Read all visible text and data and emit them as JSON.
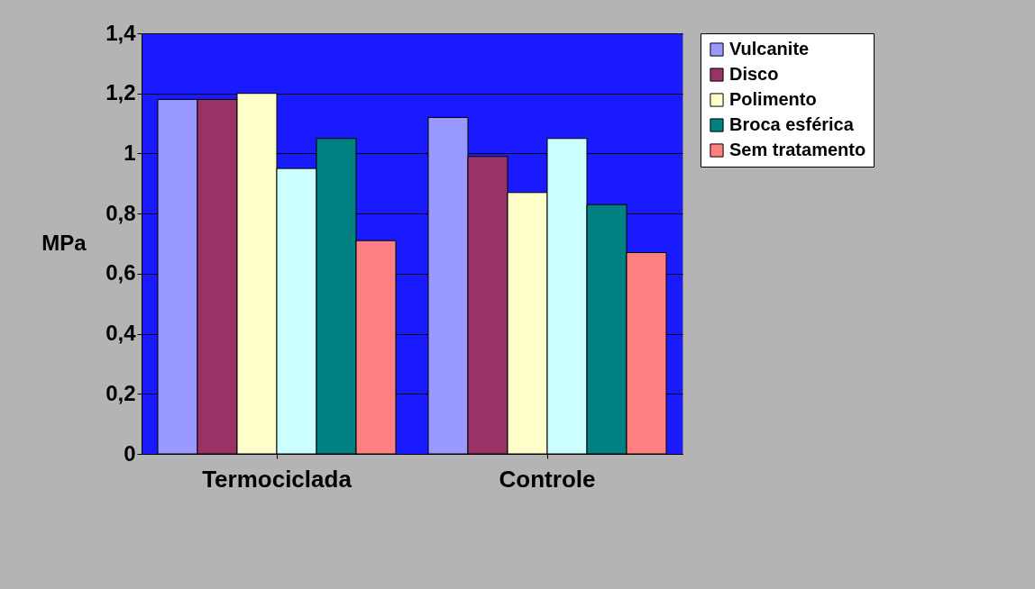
{
  "chart_data": {
    "type": "bar",
    "ylabel": "MPa",
    "categories": [
      "Termociclada",
      "Controle"
    ],
    "series": [
      {
        "name": "Vulcanite",
        "color": "#9999ff",
        "values": [
          1.18,
          1.12
        ]
      },
      {
        "name": "Disco",
        "color": "#993366",
        "values": [
          1.18,
          0.99
        ]
      },
      {
        "name": "Polimento",
        "color": "#ffffcc",
        "values": [
          1.2,
          0.87
        ]
      },
      {
        "color": "#ccffff",
        "values": [
          0.95,
          1.05
        ]
      },
      {
        "name": "Broca esférica",
        "color": "#008080",
        "values": [
          1.05,
          0.83
        ]
      },
      {
        "name": "Sem tratamento",
        "color": "#ff8080",
        "values": [
          0.71,
          0.67
        ]
      }
    ],
    "ylim": [
      0,
      1.4
    ],
    "yticks": [
      0,
      {
        "value": 0.2,
        "label": "0,2"
      },
      {
        "value": 0.4,
        "label": "0,4"
      },
      {
        "value": 0.6,
        "label": "0,6"
      },
      {
        "value": 0.8,
        "label": "0,8"
      },
      1,
      {
        "value": 1.2,
        "label": "1,2"
      },
      {
        "value": 1.4,
        "label": "1,4"
      }
    ],
    "grid": "y",
    "legend": "right"
  }
}
